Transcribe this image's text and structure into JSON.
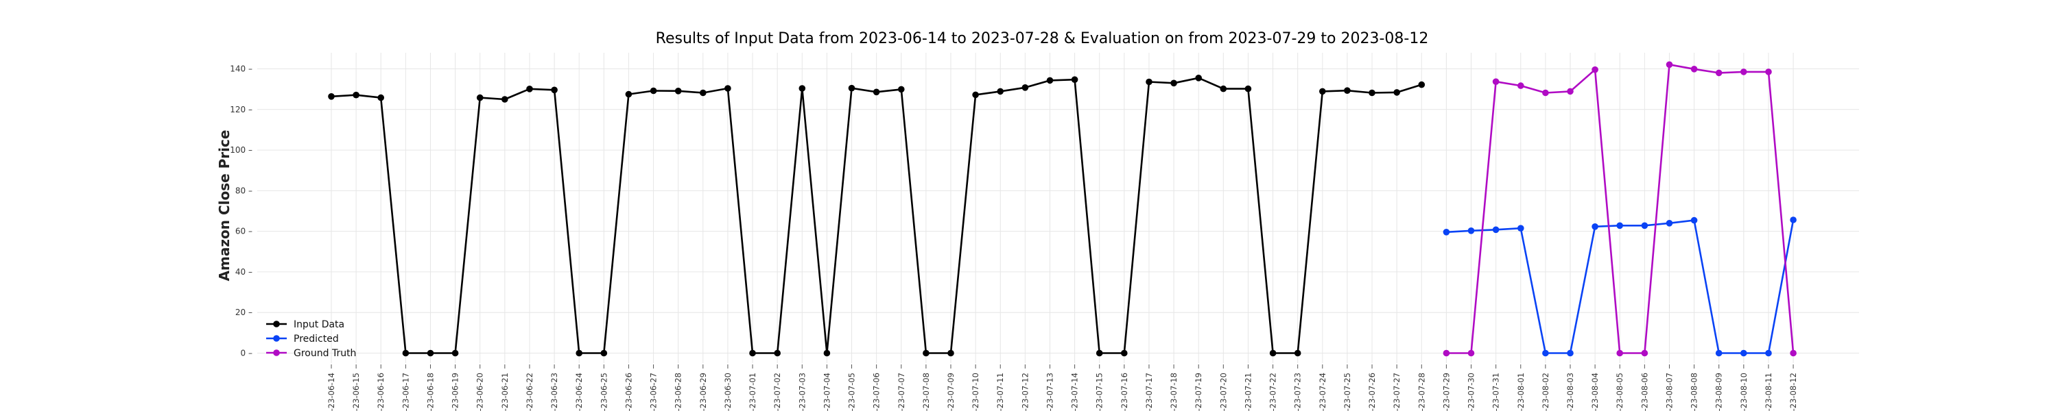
{
  "chart_data": {
    "type": "line",
    "title": "Results of Input Data from 2023-06-14 to 2023-07-28 & Evaluation on from 2023-07-29 to 2023-08-12",
    "xlabel": "",
    "ylabel": "Amazon Close Price",
    "ylim": [
      -8,
      148
    ],
    "yticks": [
      0,
      20,
      40,
      60,
      80,
      100,
      120,
      140
    ],
    "grid": true,
    "legend_position": "lower-left",
    "x": [
      "2023-06-14",
      "2023-06-15",
      "2023-06-16",
      "2023-06-17",
      "2023-06-18",
      "2023-06-19",
      "2023-06-20",
      "2023-06-21",
      "2023-06-22",
      "2023-06-23",
      "2023-06-24",
      "2023-06-25",
      "2023-06-26",
      "2023-06-27",
      "2023-06-28",
      "2023-06-29",
      "2023-06-30",
      "2023-07-01",
      "2023-07-02",
      "2023-07-03",
      "2023-07-04",
      "2023-07-05",
      "2023-07-06",
      "2023-07-07",
      "2023-07-08",
      "2023-07-09",
      "2023-07-10",
      "2023-07-11",
      "2023-07-12",
      "2023-07-13",
      "2023-07-14",
      "2023-07-15",
      "2023-07-16",
      "2023-07-17",
      "2023-07-18",
      "2023-07-19",
      "2023-07-20",
      "2023-07-21",
      "2023-07-22",
      "2023-07-23",
      "2023-07-24",
      "2023-07-25",
      "2023-07-26",
      "2023-07-27",
      "2023-07-28",
      "2023-07-29",
      "2023-07-30",
      "2023-07-31",
      "2023-08-01",
      "2023-08-02",
      "2023-08-03",
      "2023-08-04",
      "2023-08-05",
      "2023-08-06",
      "2023-08-07",
      "2023-08-08",
      "2023-08-09",
      "2023-08-10",
      "2023-08-11",
      "2023-08-12"
    ],
    "x_tick_labels": [
      "-23-06-14",
      "-23-06-15",
      "-23-06-16",
      "-23-06-17",
      "-23-06-18",
      "-23-06-19",
      "-23-06-20",
      "-23-06-21",
      "-23-06-22",
      "-23-06-23",
      "-23-06-24",
      "-23-06-25",
      "-23-06-26",
      "-23-06-27",
      "-23-06-28",
      "-23-06-29",
      "-23-06-30",
      "-23-07-01",
      "-23-07-02",
      "-23-07-03",
      "-23-07-04",
      "-23-07-05",
      "-23-07-06",
      "-23-07-07",
      "-23-07-08",
      "-23-07-09",
      "-23-07-10",
      "-23-07-11",
      "-23-07-12",
      "-23-07-13",
      "-23-07-14",
      "-23-07-15",
      "-23-07-16",
      "-23-07-17",
      "-23-07-18",
      "-23-07-19",
      "-23-07-20",
      "-23-07-21",
      "-23-07-22",
      "-23-07-23",
      "-23-07-24",
      "-23-07-25",
      "-23-07-26",
      "-23-07-27",
      "-23-07-28",
      "-23-07-29",
      "-23-07-30",
      "-23-07-31",
      "-23-08-01",
      "-23-08-02",
      "-23-08-03",
      "-23-08-04",
      "-23-08-05",
      "-23-08-06",
      "-23-08-07",
      "-23-08-08",
      "-23-08-09",
      "-23-08-10",
      "-23-08-11",
      "-23-08-12"
    ],
    "series": [
      {
        "name": "Input Data",
        "color": "#000000",
        "x": [
          "2023-06-14",
          "2023-06-15",
          "2023-06-16",
          "2023-06-17",
          "2023-06-18",
          "2023-06-19",
          "2023-06-20",
          "2023-06-21",
          "2023-06-22",
          "2023-06-23",
          "2023-06-24",
          "2023-06-25",
          "2023-06-26",
          "2023-06-27",
          "2023-06-28",
          "2023-06-29",
          "2023-06-30",
          "2023-07-01",
          "2023-07-02",
          "2023-07-03",
          "2023-07-04",
          "2023-07-05",
          "2023-07-06",
          "2023-07-07",
          "2023-07-08",
          "2023-07-09",
          "2023-07-10",
          "2023-07-11",
          "2023-07-12",
          "2023-07-13",
          "2023-07-14",
          "2023-07-15",
          "2023-07-16",
          "2023-07-17",
          "2023-07-18",
          "2023-07-19",
          "2023-07-20",
          "2023-07-21",
          "2023-07-22",
          "2023-07-23",
          "2023-07-24",
          "2023-07-25",
          "2023-07-26",
          "2023-07-27",
          "2023-07-28"
        ],
        "values": [
          126.4,
          127.1,
          125.8,
          0,
          0,
          0,
          125.8,
          125.0,
          130.1,
          129.6,
          0,
          0,
          127.5,
          129.2,
          129.1,
          128.2,
          130.4,
          0,
          0,
          130.4,
          0,
          130.5,
          128.6,
          129.9,
          0,
          0,
          127.2,
          128.9,
          130.8,
          134.3,
          134.7,
          0,
          0,
          133.6,
          133.0,
          135.5,
          130.2,
          130.2,
          0,
          0,
          128.9,
          129.3,
          128.2,
          128.4,
          132.2
        ]
      },
      {
        "name": "Predicted",
        "color": "#0a43f5",
        "x": [
          "2023-07-29",
          "2023-07-30",
          "2023-07-31",
          "2023-08-01",
          "2023-08-02",
          "2023-08-03",
          "2023-08-04",
          "2023-08-05",
          "2023-08-06",
          "2023-08-07",
          "2023-08-08",
          "2023-08-09",
          "2023-08-10",
          "2023-08-11",
          "2023-08-12"
        ],
        "values": [
          59.6,
          60.3,
          60.8,
          61.5,
          0,
          0,
          62.3,
          62.8,
          62.8,
          64.0,
          65.4,
          0,
          0,
          0,
          65.6
        ]
      },
      {
        "name": "Ground Truth",
        "color": "#b00bc4",
        "x": [
          "2023-07-29",
          "2023-07-30",
          "2023-07-31",
          "2023-08-01",
          "2023-08-02",
          "2023-08-03",
          "2023-08-04",
          "2023-08-05",
          "2023-08-06",
          "2023-08-07",
          "2023-08-08",
          "2023-08-09",
          "2023-08-10",
          "2023-08-11",
          "2023-08-12"
        ],
        "values": [
          0,
          0,
          133.7,
          131.7,
          128.2,
          128.9,
          139.6,
          0,
          0,
          142.1,
          139.9,
          138.0,
          138.5,
          138.5,
          0
        ]
      }
    ]
  }
}
